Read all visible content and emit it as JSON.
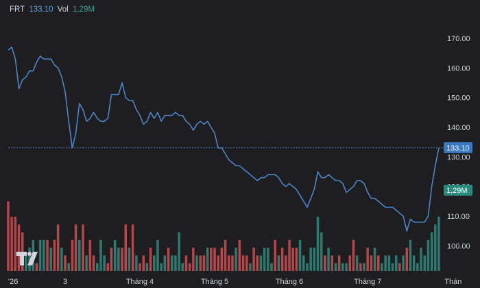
{
  "legend": {
    "symbol": "FRT",
    "price": "133.10",
    "vol_label": "Vol",
    "vol_value": "1,29M"
  },
  "colors": {
    "line": "#4a86c8",
    "vol_up": "#2d7a70",
    "vol_down": "#b5474b",
    "background": "#1e1e20"
  },
  "logo": "TradingView",
  "chart_data": {
    "type": "line",
    "ylim": [
      92,
      173
    ],
    "y_ticks": [
      "170.00",
      "160.00",
      "150.00",
      "140.00",
      "130.00",
      "120.00",
      "110.00",
      "100.00"
    ],
    "y_tick_values": [
      170,
      160,
      150,
      140,
      130,
      120,
      110,
      100
    ],
    "x_labels": [
      {
        "text": "'26",
        "i": 0
      },
      {
        "text": "3",
        "i": 16
      },
      {
        "text": "Tháng 4",
        "i": 37
      },
      {
        "text": "Tháng 5",
        "i": 58
      },
      {
        "text": "Tháng 6",
        "i": 79
      },
      {
        "text": "Tháng 7",
        "i": 101
      },
      {
        "text": "Thán",
        "i": 125
      }
    ],
    "last_price": 133.1,
    "last_price_label": "133.10",
    "last_volume_label": "1,29M",
    "price": [
      166,
      167,
      163,
      153,
      156,
      157,
      159,
      159,
      162,
      164,
      163,
      163,
      163,
      161,
      160,
      157,
      152,
      142,
      133,
      138,
      148,
      146,
      142,
      143,
      145,
      143,
      142,
      142,
      143,
      151,
      151,
      151,
      155,
      150,
      149,
      149,
      146,
      144,
      141,
      142,
      145,
      143,
      145,
      142,
      144,
      144,
      144,
      145,
      144,
      144,
      142,
      141,
      139,
      141,
      142,
      141,
      142,
      140,
      138,
      133,
      133,
      131,
      129,
      128,
      127,
      127,
      126,
      125,
      124,
      123,
      122,
      123,
      123,
      124,
      124,
      124,
      123,
      121,
      120,
      121,
      120,
      119,
      117,
      115,
      113,
      116,
      119,
      125,
      123,
      123,
      124,
      123,
      122,
      122,
      121,
      118,
      119,
      120,
      122,
      122,
      121,
      118,
      116,
      116,
      115,
      114,
      113,
      113,
      113,
      112,
      111,
      110,
      105,
      109,
      108,
      108,
      108,
      108,
      110,
      120,
      127,
      133.1
    ],
    "volume": [
      9,
      7,
      7,
      6,
      5,
      2,
      3,
      4,
      1,
      4,
      4,
      4,
      3,
      4,
      6,
      3,
      2,
      1,
      4,
      6,
      4,
      6,
      2,
      4,
      2,
      1,
      4,
      2,
      1,
      3,
      4,
      3,
      3,
      6,
      3,
      6,
      2,
      1,
      2,
      1,
      3,
      2,
      4,
      1,
      2,
      3,
      2,
      2,
      5,
      1,
      2,
      1,
      3,
      2,
      2,
      2,
      3,
      3,
      3,
      2,
      3,
      4,
      2,
      2,
      3,
      4,
      2,
      2,
      1,
      3,
      2,
      2,
      3,
      3,
      1,
      4,
      2,
      3,
      2,
      4,
      3,
      3,
      4,
      2,
      1,
      3,
      3,
      7,
      5,
      2,
      3,
      2,
      1,
      2,
      1,
      1,
      2,
      4,
      2,
      1,
      1,
      3,
      2,
      3,
      2,
      1,
      2,
      2,
      1,
      2,
      1,
      2,
      3,
      4,
      2,
      1,
      3,
      2,
      4,
      5,
      6,
      7
    ],
    "vol_dir": [
      "d",
      "d",
      "d",
      "d",
      "d",
      "u",
      "u",
      "u",
      "d",
      "u",
      "u",
      "d",
      "u",
      "d",
      "d",
      "u",
      "d",
      "u",
      "d",
      "d",
      "u",
      "d",
      "u",
      "d",
      "d",
      "u",
      "u",
      "u",
      "d",
      "d",
      "u",
      "u",
      "d",
      "d",
      "u",
      "d",
      "u",
      "d",
      "d",
      "u",
      "d",
      "u",
      "u",
      "u",
      "u",
      "d",
      "u",
      "u",
      "u",
      "u",
      "d",
      "d",
      "d",
      "u",
      "d",
      "d",
      "u",
      "d",
      "d",
      "d",
      "d",
      "d",
      "d",
      "d",
      "u",
      "d",
      "d",
      "d",
      "u",
      "d",
      "d",
      "u",
      "u",
      "u",
      "u",
      "d",
      "u",
      "d",
      "d",
      "d",
      "d",
      "d",
      "u",
      "u",
      "u",
      "u",
      "u",
      "u",
      "u",
      "d",
      "u",
      "d",
      "u",
      "d",
      "u",
      "u",
      "d",
      "d",
      "u",
      "d",
      "u",
      "d",
      "d",
      "u",
      "d",
      "u",
      "u",
      "u",
      "u",
      "u",
      "d",
      "u",
      "d",
      "u",
      "u",
      "u",
      "u",
      "u",
      "u",
      "u",
      "u",
      "u"
    ]
  }
}
